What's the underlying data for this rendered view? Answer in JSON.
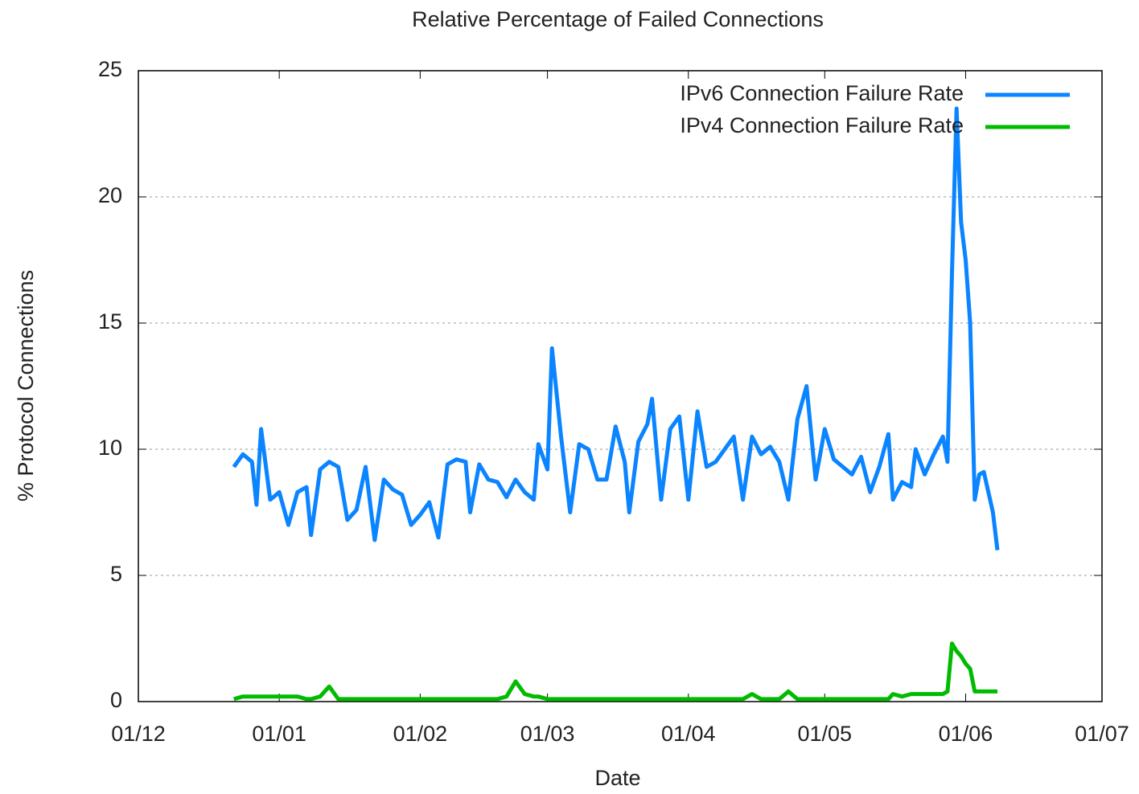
{
  "chart_data": {
    "type": "line",
    "title": "Relative Percentage of Failed Connections",
    "x_label": "Date",
    "y_label": "% Protocol Connections",
    "x": [
      21,
      23,
      25,
      26,
      27,
      29,
      31,
      33,
      35,
      37,
      38,
      40,
      42,
      44,
      46,
      48,
      50,
      52,
      54,
      56,
      58,
      60,
      62,
      64,
      66,
      68,
      70,
      72,
      73,
      75,
      77,
      79,
      81,
      83,
      85,
      87,
      88,
      90,
      91,
      93,
      95,
      97,
      99,
      101,
      103,
      105,
      107,
      108,
      110,
      112,
      113,
      115,
      117,
      119,
      121,
      123,
      125,
      127,
      129,
      131,
      133,
      135,
      137,
      139,
      141,
      143,
      145,
      147,
      149,
      151,
      153,
      155,
      157,
      159,
      161,
      163,
      165,
      166,
      168,
      170,
      171,
      173,
      175,
      177,
      178,
      179,
      180,
      181,
      182,
      183,
      184,
      185,
      186,
      188,
      189
    ],
    "series": [
      {
        "name": "IPv6 Connection Failure Rate",
        "color": "#0a84ff",
        "values": [
          9.3,
          9.8,
          9.5,
          7.8,
          10.8,
          8.0,
          8.3,
          7.0,
          8.3,
          8.5,
          6.6,
          9.2,
          9.5,
          9.3,
          7.2,
          7.6,
          9.3,
          6.4,
          8.8,
          8.4,
          8.2,
          7.0,
          7.4,
          7.9,
          6.5,
          9.4,
          9.6,
          9.5,
          7.5,
          9.4,
          8.8,
          8.7,
          8.1,
          8.8,
          8.3,
          8.0,
          10.2,
          9.2,
          14.0,
          10.5,
          7.5,
          10.2,
          10.0,
          8.8,
          8.8,
          10.9,
          9.5,
          7.5,
          10.3,
          11.0,
          12.0,
          8.0,
          10.8,
          11.3,
          8.0,
          11.5,
          9.3,
          9.5,
          10.0,
          10.5,
          8.0,
          10.5,
          9.8,
          10.1,
          9.5,
          8.0,
          11.2,
          12.5,
          8.8,
          10.8,
          9.6,
          9.3,
          9.0,
          9.7,
          8.3,
          9.3,
          10.6,
          8.0,
          8.7,
          8.5,
          10.0,
          9.0,
          9.8,
          10.5,
          9.5,
          17.0,
          23.5,
          19.0,
          17.5,
          15.0,
          8.0,
          9.0,
          9.1,
          7.5,
          6.0
        ]
      },
      {
        "name": "IPv4 Connection Failure Rate",
        "color": "#00bb00",
        "values": [
          0.1,
          0.2,
          0.2,
          0.2,
          0.2,
          0.2,
          0.2,
          0.2,
          0.2,
          0.1,
          0.1,
          0.2,
          0.6,
          0.1,
          0.1,
          0.1,
          0.1,
          0.1,
          0.1,
          0.1,
          0.1,
          0.1,
          0.1,
          0.1,
          0.1,
          0.1,
          0.1,
          0.1,
          0.1,
          0.1,
          0.1,
          0.1,
          0.2,
          0.8,
          0.3,
          0.2,
          0.2,
          0.1,
          0.1,
          0.1,
          0.1,
          0.1,
          0.1,
          0.1,
          0.1,
          0.1,
          0.1,
          0.1,
          0.1,
          0.1,
          0.1,
          0.1,
          0.1,
          0.1,
          0.1,
          0.1,
          0.1,
          0.1,
          0.1,
          0.1,
          0.1,
          0.3,
          0.1,
          0.1,
          0.1,
          0.4,
          0.1,
          0.1,
          0.1,
          0.1,
          0.1,
          0.1,
          0.1,
          0.1,
          0.1,
          0.1,
          0.1,
          0.3,
          0.2,
          0.3,
          0.3,
          0.3,
          0.3,
          0.3,
          0.4,
          2.3,
          2.0,
          1.8,
          1.5,
          1.3,
          0.4,
          0.4,
          0.4,
          0.4,
          0.4
        ]
      }
    ],
    "xlim": [
      0,
      212
    ],
    "xticks": [
      {
        "value": 0,
        "label": "01/12"
      },
      {
        "value": 31,
        "label": "01/01"
      },
      {
        "value": 62,
        "label": "01/02"
      },
      {
        "value": 90,
        "label": "01/03"
      },
      {
        "value": 121,
        "label": "01/04"
      },
      {
        "value": 151,
        "label": "01/05"
      },
      {
        "value": 182,
        "label": "01/06"
      },
      {
        "value": 212,
        "label": "01/07"
      }
    ],
    "ylim": [
      0,
      25
    ],
    "yticks": [
      0,
      5,
      10,
      15,
      20,
      25
    ],
    "grid": true,
    "legend": "top-right"
  }
}
